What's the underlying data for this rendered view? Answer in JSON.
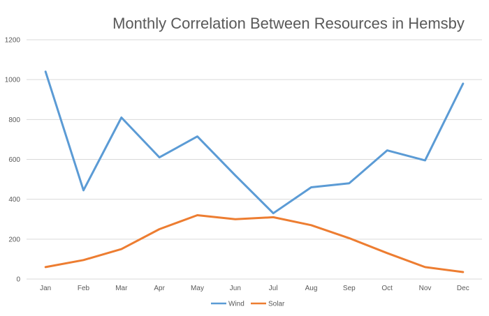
{
  "chart_data": {
    "type": "line",
    "title": "Monthly Correlation Between Resources in Hemsby",
    "xlabel": "",
    "ylabel": "",
    "categories": [
      "Jan",
      "Feb",
      "Mar",
      "Apr",
      "May",
      "Jun",
      "Jul",
      "Aug",
      "Sep",
      "Oct",
      "Nov",
      "Dec"
    ],
    "series": [
      {
        "name": "Wind",
        "color": "#5B9BD5",
        "values": [
          1040,
          445,
          810,
          610,
          715,
          520,
          330,
          460,
          480,
          645,
          595,
          980
        ]
      },
      {
        "name": "Solar",
        "color": "#ED7D31",
        "values": [
          60,
          95,
          150,
          250,
          320,
          300,
          310,
          270,
          205,
          130,
          60,
          35
        ]
      }
    ],
    "ylim": [
      0,
      1200
    ],
    "yticks": [
      0,
      200,
      400,
      600,
      800,
      1000,
      1200
    ],
    "grid": true,
    "legend_position": "bottom",
    "text_color": "#595959",
    "gridline_color": "#D9D9D9",
    "background_color": "#FFFFFF"
  }
}
